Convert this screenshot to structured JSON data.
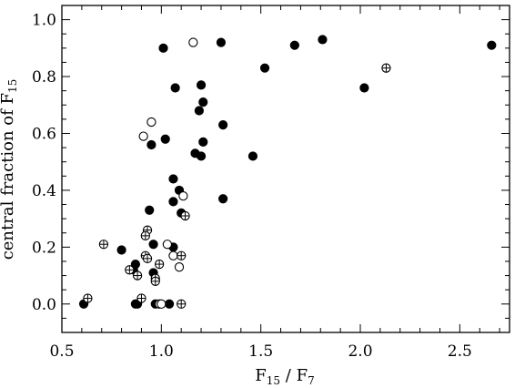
{
  "chart_data": {
    "type": "scatter",
    "title": "",
    "xlabel": {
      "main": "F",
      "sub1": "15",
      "sep": " / F",
      "sub2": "7"
    },
    "ylabel": {
      "main": "central fraction of F",
      "sub": "15"
    },
    "xlim": [
      0.5,
      2.75
    ],
    "ylim": [
      -0.1,
      1.05
    ],
    "x_ticks": [
      0.5,
      1.0,
      1.5,
      2.0,
      2.5
    ],
    "x_tick_labels": [
      "0.5",
      "1.0",
      "1.5",
      "2.0",
      "2.5"
    ],
    "y_ticks": [
      0.0,
      0.2,
      0.4,
      0.6,
      0.8,
      1.0
    ],
    "y_tick_labels": [
      "0.0",
      "0.2",
      "0.4",
      "0.6",
      "0.8",
      "1.0"
    ],
    "grid": false,
    "legend": "none",
    "series": [
      {
        "marker": "filled-circle",
        "points": [
          [
            1.01,
            0.9
          ],
          [
            1.3,
            0.92
          ],
          [
            1.67,
            0.91
          ],
          [
            1.81,
            0.93
          ],
          [
            2.66,
            0.91
          ],
          [
            1.52,
            0.83
          ],
          [
            1.07,
            0.76
          ],
          [
            1.2,
            0.77
          ],
          [
            1.21,
            0.71
          ],
          [
            1.19,
            0.68
          ],
          [
            2.02,
            0.76
          ],
          [
            1.31,
            0.63
          ],
          [
            0.95,
            0.56
          ],
          [
            1.02,
            0.58
          ],
          [
            1.21,
            0.57
          ],
          [
            1.17,
            0.53
          ],
          [
            1.2,
            0.52
          ],
          [
            1.46,
            0.52
          ],
          [
            1.06,
            0.44
          ],
          [
            1.09,
            0.4
          ],
          [
            1.06,
            0.36
          ],
          [
            1.31,
            0.37
          ],
          [
            0.94,
            0.33
          ],
          [
            1.1,
            0.32
          ],
          [
            0.8,
            0.19
          ],
          [
            0.96,
            0.21
          ],
          [
            1.06,
            0.2
          ],
          [
            0.87,
            0.14
          ],
          [
            0.86,
            0.12
          ],
          [
            0.96,
            0.11
          ],
          [
            0.61,
            0.0
          ],
          [
            0.87,
            0.0
          ],
          [
            0.88,
            0.0
          ],
          [
            0.97,
            0.0
          ],
          [
            1.04,
            0.0
          ]
        ]
      },
      {
        "marker": "open-circle",
        "points": [
          [
            1.16,
            0.92
          ],
          [
            0.95,
            0.64
          ],
          [
            0.91,
            0.59
          ],
          [
            1.11,
            0.38
          ],
          [
            1.03,
            0.21
          ],
          [
            1.06,
            0.17
          ],
          [
            1.09,
            0.13
          ],
          [
            0.99,
            0.0
          ],
          [
            1.0,
            0.0
          ]
        ]
      },
      {
        "marker": "crossed-circle",
        "points": [
          [
            2.13,
            0.83
          ],
          [
            1.12,
            0.31
          ],
          [
            0.71,
            0.21
          ],
          [
            0.93,
            0.26
          ],
          [
            0.92,
            0.24
          ],
          [
            0.92,
            0.17
          ],
          [
            0.93,
            0.16
          ],
          [
            1.1,
            0.17
          ],
          [
            0.84,
            0.12
          ],
          [
            0.88,
            0.1
          ],
          [
            0.97,
            0.09
          ],
          [
            0.97,
            0.08
          ],
          [
            0.99,
            0.14
          ],
          [
            0.9,
            0.02
          ],
          [
            0.63,
            0.02
          ],
          [
            1.1,
            0.0
          ]
        ]
      }
    ]
  }
}
